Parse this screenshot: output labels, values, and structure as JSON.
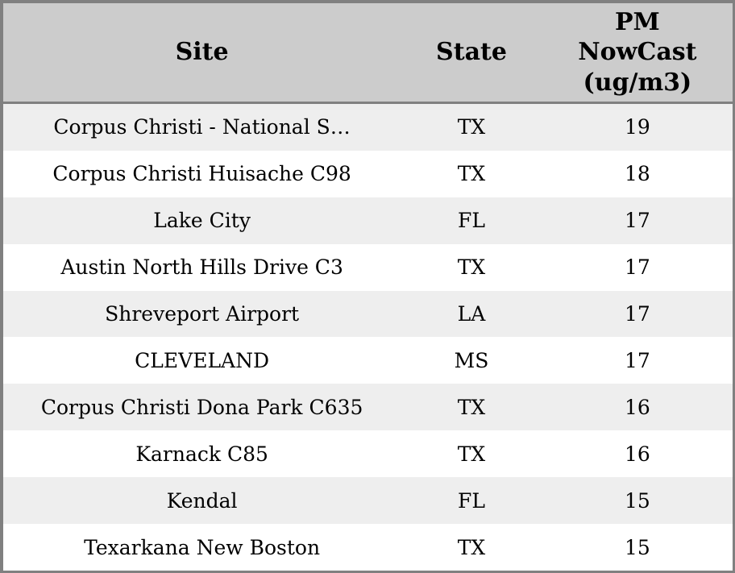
{
  "colors": {
    "header_bg": "#cccccc",
    "row_stripe_bg": "#eeeeee",
    "row_plain_bg": "#ffffff",
    "border": "#808080",
    "text": "#000000"
  },
  "table": {
    "columns": [
      {
        "label": "Site"
      },
      {
        "label": "State"
      },
      {
        "label": "PM NowCast (ug/m3)"
      }
    ],
    "rows": [
      {
        "site": "Corpus Christi - National S…",
        "state": "TX",
        "pm": "19"
      },
      {
        "site": "Corpus Christi Huisache C98",
        "state": "TX",
        "pm": "18"
      },
      {
        "site": "Lake City",
        "state": "FL",
        "pm": "17"
      },
      {
        "site": "Austin North Hills Drive C3",
        "state": "TX",
        "pm": "17"
      },
      {
        "site": "Shreveport Airport",
        "state": "LA",
        "pm": "17"
      },
      {
        "site": "CLEVELAND",
        "state": "MS",
        "pm": "17"
      },
      {
        "site": "Corpus Christi Dona Park C635",
        "state": "TX",
        "pm": "16"
      },
      {
        "site": "Karnack C85",
        "state": "TX",
        "pm": "16"
      },
      {
        "site": "Kendal",
        "state": "FL",
        "pm": "15"
      },
      {
        "site": "Texarkana New Boston",
        "state": "TX",
        "pm": "15"
      }
    ]
  },
  "chart_data": {
    "type": "table",
    "title": "",
    "columns": [
      "Site",
      "State",
      "PM NowCast (ug/m3)"
    ],
    "rows": [
      [
        "Corpus Christi - National S…",
        "TX",
        19
      ],
      [
        "Corpus Christi Huisache C98",
        "TX",
        18
      ],
      [
        "Lake City",
        "FL",
        17
      ],
      [
        "Austin North Hills Drive C3",
        "TX",
        17
      ],
      [
        "Shreveport Airport",
        "LA",
        17
      ],
      [
        "CLEVELAND",
        "MS",
        17
      ],
      [
        "Corpus Christi Dona Park C635",
        "TX",
        16
      ],
      [
        "Karnack C85",
        "TX",
        16
      ],
      [
        "Kendal",
        "FL",
        15
      ],
      [
        "Texarkana New Boston",
        "TX",
        15
      ]
    ],
    "layout_hints": {
      "header_background": "#cccccc",
      "striped_rows": true,
      "stripe_color": "#eeeeee",
      "outer_border_color": "#808080",
      "text_align": "center"
    }
  }
}
